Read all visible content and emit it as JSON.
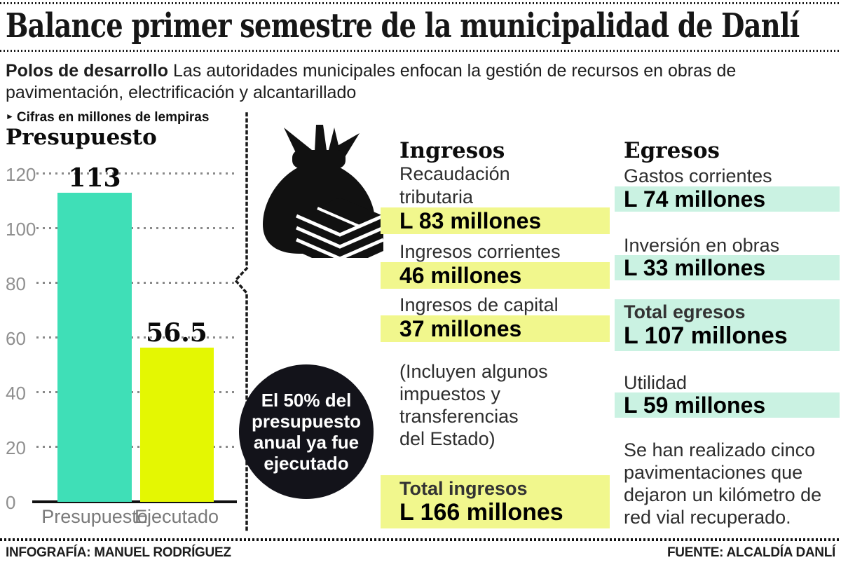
{
  "header": {
    "title": "Balance primer semestre de la municipalidad de Danlí",
    "lead_bold": "Polos de desarrollo",
    "lead_rest": " Las autoridades municipales enfocan la gestión de recursos en obras de pavimentación, electrificación y alcantarillado"
  },
  "chart": {
    "note_marker": "►",
    "note": "Cifras en millones de lempiras",
    "title": "Presupuesto"
  },
  "chart_data": {
    "type": "bar",
    "categories": [
      "Presupuesto",
      "Ejecutado"
    ],
    "values": [
      113,
      56.5
    ],
    "value_labels": [
      "113",
      "56.5"
    ],
    "bar_colors": [
      "#3fdfb7",
      "#e4f702"
    ],
    "title": "Presupuesto",
    "xlabel": "",
    "ylabel": "millones de lempiras",
    "ylim": [
      0,
      120
    ],
    "yticks": [
      0,
      20,
      40,
      60,
      80,
      100,
      120
    ],
    "grid": "dotted horizontal"
  },
  "badge": {
    "lines": [
      "El 50% del",
      "presupuesto",
      "anual ya fue",
      "ejecutado"
    ]
  },
  "ingresos": {
    "heading": "Ingresos",
    "items": [
      {
        "label_lines": [
          "Recaudación",
          "tributaria"
        ],
        "value": "L 83 millones"
      },
      {
        "label_lines": [
          "Ingresos corrientes"
        ],
        "value": "46 millones"
      },
      {
        "label_lines": [
          "Ingresos de capital"
        ],
        "value": "37 millones"
      }
    ],
    "note_lines": [
      "(Incluyen algunos",
      "impuestos y",
      "transferencias",
      "del Estado)"
    ],
    "total_label": "Total ingresos",
    "total_value": "L 166 millones"
  },
  "egresos": {
    "heading": "Egresos",
    "items": [
      {
        "label": "Gastos corrientes",
        "value": "L 74 millones"
      },
      {
        "label": "Inversión en obras",
        "value": "L 33 millones"
      }
    ],
    "total_label": "Total egresos",
    "total_value": "L 107 millones",
    "utility_label": "Utilidad",
    "utility_value": "L 59 millones",
    "note_lines": [
      "Se han realizado cinco",
      "pavimentaciones que",
      "dejaron un kilómetro de",
      "red vial recuperado."
    ]
  },
  "footer": {
    "credit": "INFOGRAFÍA: MANUEL RODRÍGUEZ",
    "source": "FUENTE: ALCALDÍA DANLÍ"
  },
  "colors": {
    "teal_bar": "#3fdfb7",
    "yellow_bar": "#e4f702",
    "yellow_highlight": "#f1f78d",
    "mint_highlight": "#caf2e2",
    "badge_black": "#13131a",
    "icon_black": "#111111"
  }
}
